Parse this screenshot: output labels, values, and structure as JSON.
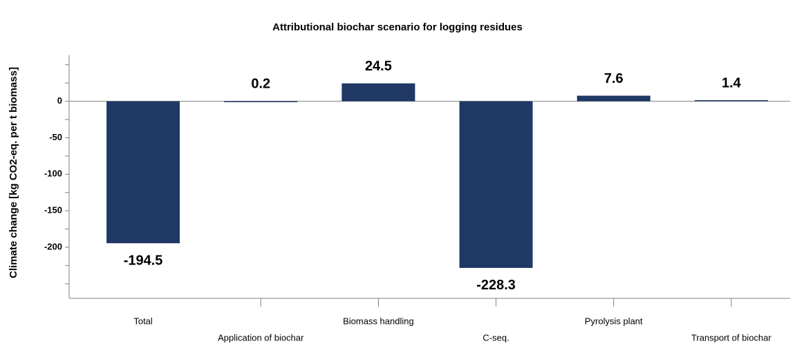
{
  "chart_data": {
    "type": "bar",
    "title": "Attributional biochar scenario for logging residues",
    "y_label": "Climate change [kg CO2-eq. per t biomass]",
    "categories": [
      "Total",
      "Application of biochar",
      "Biomass handling",
      "C-seq.",
      "Pyrolysis plant",
      "Transport of biochar"
    ],
    "values": [
      -194.5,
      0.2,
      24.5,
      -228.3,
      7.6,
      1.4
    ],
    "color": "#1f3864",
    "ylim": [
      -270,
      63
    ],
    "yticks": [
      0,
      -50,
      -100,
      -150,
      -200
    ],
    "yticks_minor": [
      50,
      25,
      -25,
      -75,
      -125,
      -175,
      -225,
      -250
    ],
    "grid": false
  }
}
